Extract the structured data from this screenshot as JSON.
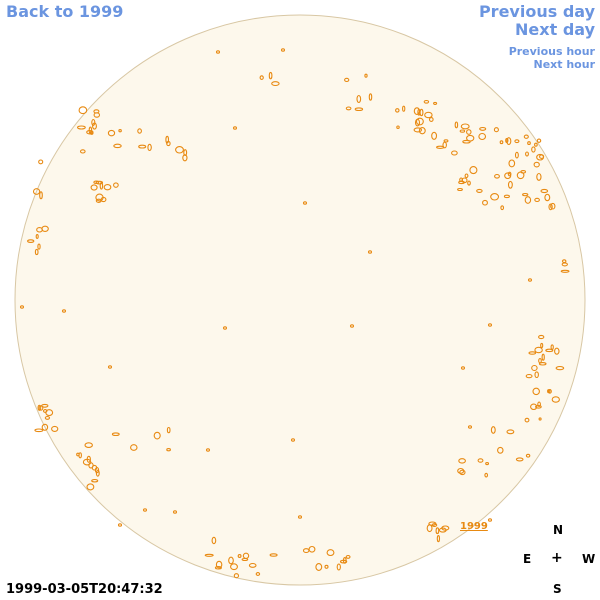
{
  "nav": {
    "back": "Back to 1999",
    "prev_day": "Previous day",
    "next_day": "Next day",
    "prev_hour": "Previous hour",
    "next_hour": "Next hour"
  },
  "timestamp": "1999-03-05T20:47:32",
  "compass": {
    "north": "N",
    "east": "E",
    "west": "W",
    "south": "S",
    "center": "+"
  },
  "disk": {
    "year_label": "1999",
    "fill_color": "#fdf8ec",
    "border_color": "#d8c7a4",
    "feature_color": "#e88a12"
  }
}
